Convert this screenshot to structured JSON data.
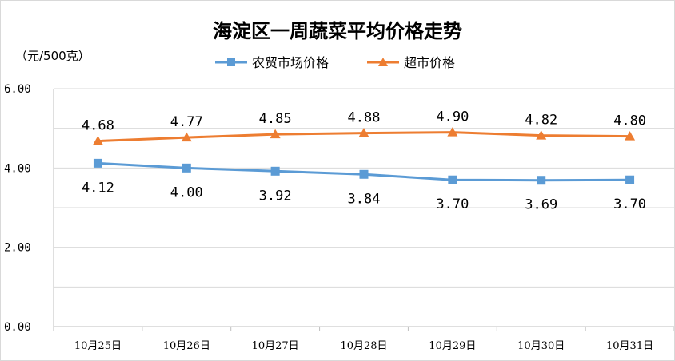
{
  "chart_data": {
    "type": "line",
    "title": "海淀区一周蔬菜平均价格走势",
    "ylabel": "（元/500克）",
    "xlabel": "",
    "categories": [
      "10月25日",
      "10月26日",
      "10月27日",
      "10月28日",
      "10月29日",
      "10月30日",
      "10月31日"
    ],
    "ylim": [
      0,
      6
    ],
    "yticks": [
      0,
      2,
      4,
      6
    ],
    "ytick_labels": [
      "0.00",
      "2.00",
      "4.00",
      "6.00"
    ],
    "grid": true,
    "legend_position": "top",
    "series": [
      {
        "name": "农贸市场价格",
        "color": "#5b9bd5",
        "marker": "square",
        "values": [
          4.12,
          4.0,
          3.92,
          3.84,
          3.7,
          3.69,
          3.7
        ],
        "labels": [
          "4.12",
          "4.00",
          "3.92",
          "3.84",
          "3.70",
          "3.69",
          "3.70"
        ]
      },
      {
        "name": "超市价格",
        "color": "#ed7d31",
        "marker": "triangle",
        "values": [
          4.68,
          4.77,
          4.85,
          4.88,
          4.9,
          4.82,
          4.8
        ],
        "labels": [
          "4.68",
          "4.77",
          "4.85",
          "4.88",
          "4.90",
          "4.82",
          "4.80"
        ]
      }
    ]
  }
}
